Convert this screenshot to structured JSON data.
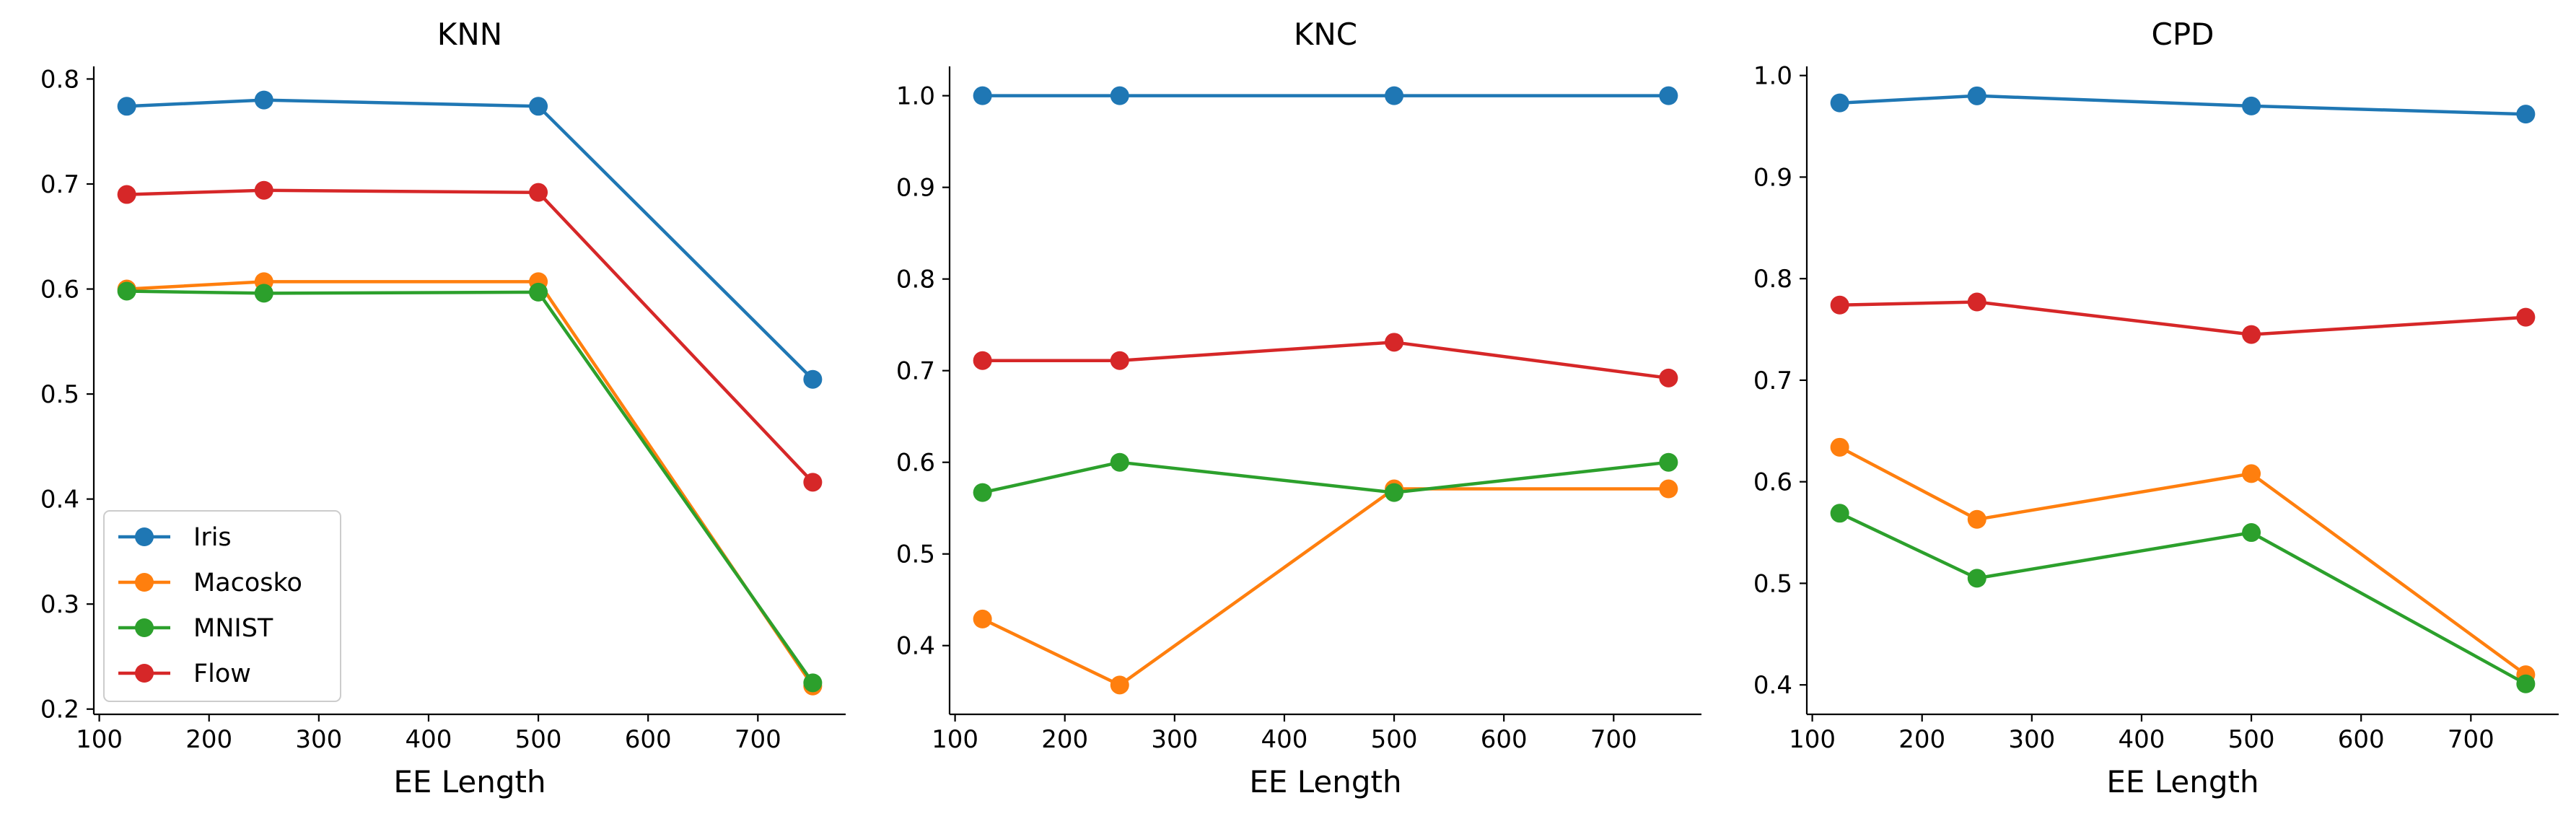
{
  "chart_data": [
    {
      "type": "line",
      "title": "KNN",
      "xlabel": "EE Length",
      "ylabel": "",
      "x": [
        125,
        250,
        500,
        750
      ],
      "xlim": [
        95,
        780
      ],
      "ylim": [
        0.195,
        0.812
      ],
      "xticks": [
        100,
        200,
        300,
        400,
        500,
        600,
        700
      ],
      "yticks": [
        0.2,
        0.3,
        0.4,
        0.5,
        0.6,
        0.7,
        0.8
      ],
      "ytick_decimals": 1,
      "legend": true,
      "legend_position": "lower-left",
      "series": [
        {
          "name": "Iris",
          "color": "#1f77b4",
          "values": [
            0.774,
            0.78,
            0.774,
            0.514
          ]
        },
        {
          "name": "Macosko",
          "color": "#ff7f0e",
          "values": [
            0.6,
            0.607,
            0.607,
            0.222
          ]
        },
        {
          "name": "MNIST",
          "color": "#2ca02c",
          "values": [
            0.598,
            0.596,
            0.597,
            0.225
          ]
        },
        {
          "name": "Flow",
          "color": "#d62728",
          "values": [
            0.69,
            0.694,
            0.692,
            0.416
          ]
        }
      ]
    },
    {
      "type": "line",
      "title": "KNC",
      "xlabel": "EE Length",
      "ylabel": "",
      "x": [
        125,
        250,
        500,
        750
      ],
      "xlim": [
        95,
        780
      ],
      "ylim": [
        0.325,
        1.032
      ],
      "xticks": [
        100,
        200,
        300,
        400,
        500,
        600,
        700
      ],
      "yticks": [
        0.4,
        0.5,
        0.6,
        0.7,
        0.8,
        0.9,
        1.0
      ],
      "ytick_decimals": 1,
      "legend": false,
      "series": [
        {
          "name": "Iris",
          "color": "#1f77b4",
          "values": [
            1.0,
            1.0,
            1.0,
            1.0
          ]
        },
        {
          "name": "Macosko",
          "color": "#ff7f0e",
          "values": [
            0.429,
            0.357,
            0.571,
            0.571
          ]
        },
        {
          "name": "MNIST",
          "color": "#2ca02c",
          "values": [
            0.567,
            0.6,
            0.567,
            0.6
          ]
        },
        {
          "name": "Flow",
          "color": "#d62728",
          "values": [
            0.711,
            0.711,
            0.731,
            0.692
          ]
        }
      ]
    },
    {
      "type": "line",
      "title": "CPD",
      "xlabel": "EE Length",
      "ylabel": "",
      "x": [
        125,
        250,
        500,
        750
      ],
      "xlim": [
        95,
        780
      ],
      "ylim": [
        0.371,
        1.009
      ],
      "xticks": [
        100,
        200,
        300,
        400,
        500,
        600,
        700
      ],
      "yticks": [
        0.4,
        0.5,
        0.6,
        0.7,
        0.8,
        0.9,
        1.0
      ],
      "ytick_decimals": 1,
      "legend": false,
      "series": [
        {
          "name": "Iris",
          "color": "#1f77b4",
          "values": [
            0.973,
            0.98,
            0.97,
            0.962
          ]
        },
        {
          "name": "Macosko",
          "color": "#ff7f0e",
          "values": [
            0.634,
            0.563,
            0.608,
            0.41
          ]
        },
        {
          "name": "MNIST",
          "color": "#2ca02c",
          "values": [
            0.569,
            0.505,
            0.55,
            0.401
          ]
        },
        {
          "name": "Flow",
          "color": "#d62728",
          "values": [
            0.774,
            0.777,
            0.745,
            0.762
          ]
        }
      ]
    }
  ]
}
